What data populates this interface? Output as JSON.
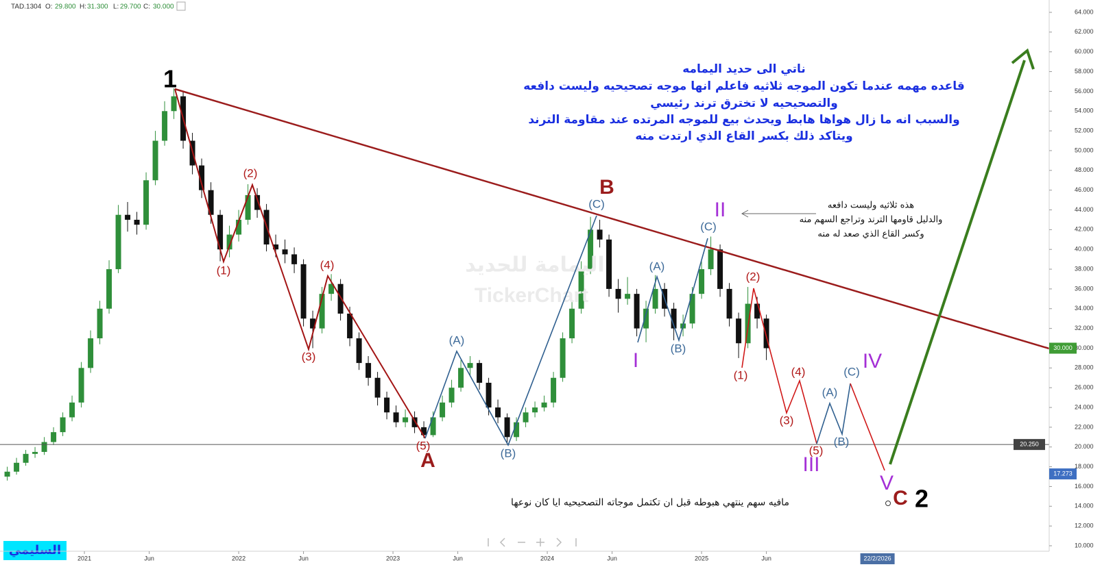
{
  "chart_data": {
    "type": "candlestick",
    "symbol": "TAD.1304",
    "legend_keys": [
      "O:",
      "H:",
      "L:",
      "C:"
    ],
    "legend_values": [
      {
        "value": 29.8,
        "label": "29.800"
      },
      {
        "value": 31.3,
        "label": "31.300"
      },
      {
        "value": 29.7,
        "label": "29.700"
      },
      {
        "value": 30.0,
        "label": "30.000"
      }
    ],
    "x": [
      2020.5,
      2020.56,
      2020.62,
      2020.68,
      2020.74,
      2020.8,
      2020.86,
      2020.92,
      2020.98,
      2021.04,
      2021.1,
      2021.16,
      2021.22,
      2021.28,
      2021.34,
      2021.4,
      2021.46,
      2021.52,
      2021.58,
      2021.64,
      2021.7,
      2021.76,
      2021.82,
      2021.88,
      2021.94,
      2022.0,
      2022.06,
      2022.12,
      2022.18,
      2022.24,
      2022.3,
      2022.36,
      2022.42,
      2022.48,
      2022.54,
      2022.6,
      2022.66,
      2022.72,
      2022.78,
      2022.84,
      2022.9,
      2022.96,
      2023.02,
      2023.08,
      2023.14,
      2023.2,
      2023.26,
      2023.32,
      2023.38,
      2023.44,
      2023.5,
      2023.56,
      2023.62,
      2023.68,
      2023.74,
      2023.8,
      2023.86,
      2023.92,
      2023.98,
      2024.04,
      2024.1,
      2024.16,
      2024.22,
      2024.28,
      2024.34,
      2024.4,
      2024.46,
      2024.52,
      2024.58,
      2024.64,
      2024.7,
      2024.76,
      2024.82,
      2024.88,
      2024.94,
      2025.0,
      2025.06,
      2025.12,
      2025.18,
      2025.24,
      2025.3,
      2025.36,
      2025.42
    ],
    "open": [
      17.0,
      17.5,
      18.4,
      19.3,
      19.5,
      20.5,
      21.5,
      23,
      24.5,
      28,
      31,
      34,
      38,
      43.5,
      43,
      42.5,
      47,
      51,
      54,
      55.5,
      51,
      48.5,
      46,
      43.5,
      40,
      41.5,
      43,
      45.5,
      44,
      40.5,
      40,
      39.5,
      38.5,
      33,
      32,
      35.5,
      36.5,
      33.5,
      31,
      28.5,
      27,
      25,
      23.5,
      22.5,
      23,
      22,
      21.2,
      23,
      24.5,
      26,
      28,
      28.5,
      26.5,
      24,
      23,
      21,
      22.5,
      23.5,
      24,
      24.5,
      27,
      31,
      34,
      38,
      42,
      41,
      36,
      35,
      35.5,
      32,
      34,
      36,
      34,
      32,
      32.5,
      35.5,
      38,
      40,
      36,
      33,
      30.5,
      34.5,
      33
    ],
    "high": [
      18.0,
      18.9,
      19.7,
      20.0,
      21.0,
      22.0,
      23.5,
      25.2,
      28.6,
      31.8,
      34.8,
      38.9,
      44.5,
      44.8,
      43.8,
      47.8,
      52.0,
      55.0,
      56.3,
      56.0,
      51.8,
      49.2,
      46.8,
      44.0,
      42.4,
      44.0,
      46.6,
      46.2,
      44.6,
      41.5,
      41.0,
      40.2,
      39.0,
      33.8,
      36.2,
      37.5,
      37.0,
      34.2,
      31.6,
      29.2,
      27.6,
      25.6,
      24.2,
      23.8,
      23.6,
      22.6,
      23.6,
      25.2,
      26.8,
      28.8,
      29.2,
      28.8,
      27.0,
      24.8,
      23.4,
      23.0,
      24.0,
      24.6,
      25.2,
      27.6,
      31.6,
      34.8,
      38.8,
      43.3,
      43.0,
      41.5,
      37.0,
      37.2,
      36.0,
      34.8,
      37.4,
      36.6,
      34.6,
      33.4,
      36.2,
      38.8,
      41.3,
      40.5,
      36.6,
      33.6,
      36.2,
      35.2,
      33.4
    ],
    "low": [
      16.6,
      17.2,
      18.1,
      18.9,
      19.2,
      20.2,
      21.1,
      22.6,
      24.0,
      27.5,
      30.4,
      33.5,
      37.6,
      41.8,
      41.5,
      42.0,
      46.5,
      50.5,
      53.2,
      50.2,
      47.6,
      45.2,
      42.6,
      38.8,
      39.2,
      40.8,
      42.5,
      43.2,
      39.8,
      39.2,
      38.6,
      37.6,
      32.2,
      30.0,
      31.5,
      34.8,
      32.8,
      30.2,
      27.8,
      26.2,
      24.2,
      22.8,
      22.0,
      22.0,
      21.4,
      20.9,
      21.0,
      22.6,
      24.0,
      25.6,
      27.2,
      25.8,
      23.2,
      22.4,
      20.4,
      20.6,
      22.0,
      23.0,
      23.6,
      24.0,
      26.6,
      30.5,
      33.5,
      37.5,
      40.2,
      35.2,
      33.6,
      34.4,
      31.2,
      30.6,
      33.5,
      33.2,
      30.8,
      31.2,
      32.0,
      35.0,
      37.4,
      35.2,
      32.2,
      29.0,
      30.0,
      32.0,
      28.8
    ],
    "close": [
      17.5,
      18.4,
      19.3,
      19.5,
      20.5,
      21.5,
      23,
      24.5,
      28,
      31,
      34,
      38,
      43.5,
      43,
      42.5,
      47,
      51,
      54,
      55.5,
      51,
      48.5,
      46,
      43.5,
      40,
      41.5,
      43,
      45.5,
      44,
      40.5,
      40,
      39.5,
      38.5,
      33,
      32,
      35.5,
      36.5,
      33.5,
      31,
      28.5,
      27,
      25,
      23.5,
      22.5,
      23,
      22,
      21.2,
      23,
      24.5,
      26,
      28,
      28.5,
      26.5,
      24,
      23,
      21,
      22.5,
      23.5,
      24,
      24.5,
      27,
      31,
      34,
      38,
      42,
      41,
      36,
      35,
      35.5,
      32,
      34,
      36,
      34,
      32,
      32.5,
      35.5,
      38,
      40,
      36,
      33,
      30.5,
      34.5,
      33,
      30
    ],
    "up_color": "#2f8f3a",
    "down_color": "#111111",
    "xlim": [
      2020.453,
      2027.253
    ],
    "xticks": [
      {
        "value": 2021,
        "label": "2021"
      },
      {
        "value": 2021.42,
        "label": "Jun"
      },
      {
        "value": 2022,
        "label": "2022"
      },
      {
        "value": 2022.42,
        "label": "Jun"
      },
      {
        "value": 2023,
        "label": "2023"
      },
      {
        "value": 2023.42,
        "label": "Jun"
      },
      {
        "value": 2024,
        "label": "2024"
      },
      {
        "value": 2024.42,
        "label": "Jun"
      },
      {
        "value": 2025,
        "label": "2025"
      },
      {
        "value": 2025.42,
        "label": "Jun"
      }
    ],
    "cursor_date": {
      "value": 2026.14,
      "label": "22/2/2026"
    },
    "ylim": [
      9.445,
      65.248
    ],
    "yticks": [
      {
        "value": 10,
        "label": "10.000"
      },
      {
        "value": 12,
        "label": "12.000"
      },
      {
        "value": 14,
        "label": "14.000"
      },
      {
        "value": 16,
        "label": "16.000"
      },
      {
        "value": 18,
        "label": "18.000"
      },
      {
        "value": 20,
        "label": "20.000"
      },
      {
        "value": 22,
        "label": "22.000"
      },
      {
        "value": 24,
        "label": "24.000"
      },
      {
        "value": 26,
        "label": "26.000"
      },
      {
        "value": 28,
        "label": "28.000"
      },
      {
        "value": 30,
        "label": "30.000"
      },
      {
        "value": 32,
        "label": "32.000"
      },
      {
        "value": 34,
        "label": "34.000"
      },
      {
        "value": 36,
        "label": "36.000"
      },
      {
        "value": 38,
        "label": "38.000"
      },
      {
        "value": 40,
        "label": "40.000"
      },
      {
        "value": 42,
        "label": "42.000"
      },
      {
        "value": 44,
        "label": "44.000"
      },
      {
        "value": 46,
        "label": "46.000"
      },
      {
        "value": 48,
        "label": "48.000"
      },
      {
        "value": 50,
        "label": "50.000"
      },
      {
        "value": 52,
        "label": "52.000"
      },
      {
        "value": 54,
        "label": "54.000"
      },
      {
        "value": 56,
        "label": "56.000"
      },
      {
        "value": 58,
        "label": "58.000"
      },
      {
        "value": 60,
        "label": "60.000"
      },
      {
        "value": 62,
        "label": "62.000"
      },
      {
        "value": 64,
        "label": "64.000"
      }
    ],
    "price_markers": [
      {
        "value": 30.0,
        "label": "30.000",
        "color": "#3f9c35"
      },
      {
        "value": 20.25,
        "label": "20.250",
        "color": "#424242",
        "line": true
      },
      {
        "value": 17.273,
        "label": "17.273",
        "color": "#3e6fc2"
      }
    ],
    "grid": false
  },
  "annotations": {
    "title_lines": [
      "ناتي الى حديد اليمامه",
      "قاعده مهمه عندما تكون الموجه ثلاثيه فاعلم انها موجه تصحيحيه وليست دافعه",
      "والتصحيحيه لا تخترق ترند رئيسي",
      "والسبب انه ما زال هواها هابط ويحدث بيع للموجه المرتده عند مقاومة الترند",
      "ويتاكد ذلك بكسر القاع الذي ارتدت منه"
    ],
    "note_lines": [
      "هذه ثلاثيه وليست دافعه",
      "والدليل قاومها الترند وتراجع السهم منه",
      "وكسر القاع الذي صعد له منه"
    ],
    "footnote": "مافيه سهم ينتهي هبوطه قبل ان تكتمل موجاته التصحيحيه ايا كان نوعها",
    "watermark": [
      "اليمامة للحديد",
      "TickerChart"
    ],
    "signature": "السليمي",
    "wave_labels": [
      "1",
      "(1)",
      "(2)",
      "(3)",
      "(4)",
      "(5)",
      "A",
      "(A)",
      "(B)",
      "B",
      "(C)",
      "I",
      "(A)",
      "(B)",
      "(C)",
      "II",
      "(2)",
      "(1)",
      "(4)",
      "(3)",
      "(5)",
      "III",
      "(A)",
      "(B)",
      "(C)",
      "IV",
      "V",
      "C",
      "2"
    ]
  }
}
